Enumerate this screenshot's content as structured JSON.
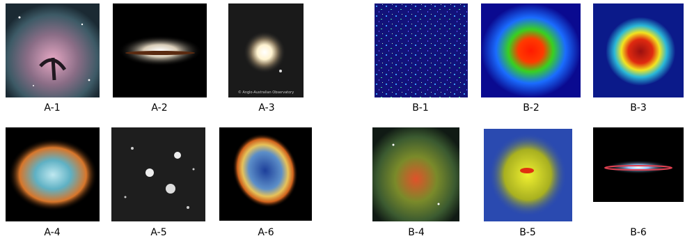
{
  "panels": [
    {
      "label": "A-1"
    },
    {
      "label": "A-2"
    },
    {
      "label": "A-3",
      "credit": "© Anglo-Australian Observatory"
    },
    {
      "label": "B-1"
    },
    {
      "label": "B-2"
    },
    {
      "label": "B-3"
    },
    {
      "label": "A-4"
    },
    {
      "label": "A-5"
    },
    {
      "label": "A-6"
    },
    {
      "label": "B-4"
    },
    {
      "label": "B-5"
    },
    {
      "label": "B-6"
    }
  ]
}
